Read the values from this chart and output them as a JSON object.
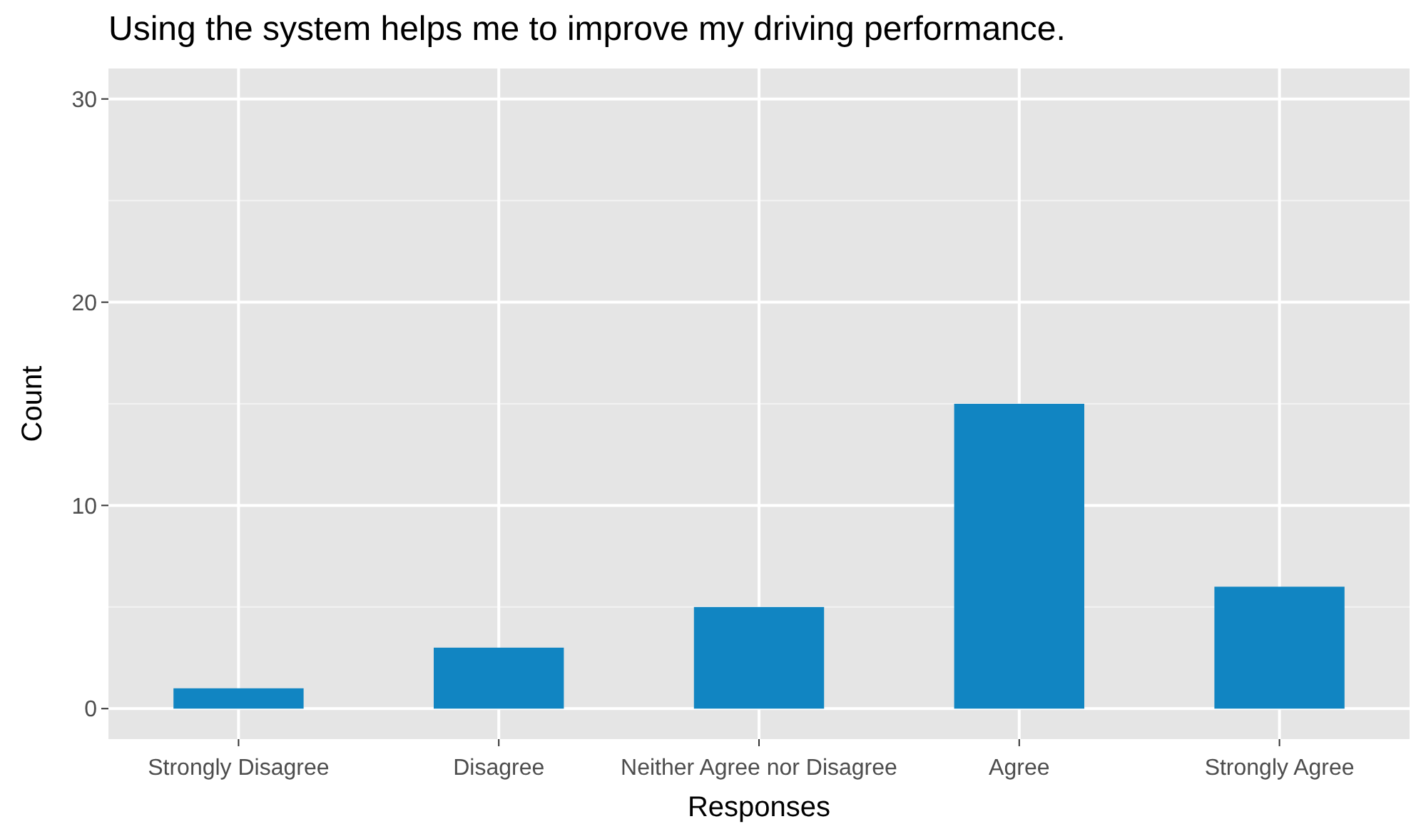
{
  "chart_data": {
    "type": "bar",
    "title": "Using the system helps me to improve my driving performance.",
    "xlabel": "Responses",
    "ylabel": "Count",
    "categories": [
      "Strongly Disagree",
      "Disagree",
      "Neither Agree nor Disagree",
      "Agree",
      "Strongly Agree"
    ],
    "values": [
      1,
      3,
      5,
      15,
      6
    ],
    "color": "#1185c2",
    "ylim": [
      -1.5,
      31.5
    ],
    "yticks": [
      0,
      10,
      20,
      30
    ],
    "grid": true
  }
}
